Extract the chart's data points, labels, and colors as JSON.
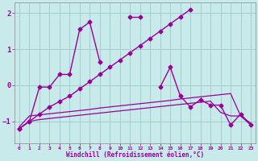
{
  "title": "",
  "xlabel": "Windchill (Refroidissement éolien,°C)",
  "ylabel": "",
  "bg_color": "#c8eaea",
  "grid_color": "#a0c8c8",
  "line_color": "#990099",
  "x": [
    0,
    1,
    2,
    3,
    4,
    5,
    6,
    7,
    8,
    9,
    10,
    11,
    12,
    13,
    14,
    15,
    16,
    17,
    18,
    19,
    20,
    21,
    22,
    23
  ],
  "series1_marker": [
    -1.2,
    -1.0,
    -0.05,
    -0.05,
    0.3,
    0.3,
    1.55,
    1.75,
    0.65,
    null,
    null,
    1.9,
    1.9,
    null,
    -0.05,
    0.5,
    -0.3,
    -0.6,
    -0.4,
    -0.55,
    -0.55,
    -1.1,
    -0.8,
    -1.1
  ],
  "series_diag": [
    -1.2,
    -1.0,
    -0.8,
    -0.6,
    -0.45,
    -0.3,
    -0.1,
    0.1,
    0.3,
    0.5,
    0.7,
    0.9,
    1.1,
    1.3,
    1.5,
    1.7,
    1.9,
    2.1,
    null,
    null,
    null,
    null,
    null,
    null
  ],
  "series_flat1": [
    -1.15,
    -0.85,
    -0.82,
    -0.79,
    -0.76,
    -0.73,
    -0.7,
    -0.67,
    -0.63,
    -0.6,
    -0.57,
    -0.54,
    -0.51,
    -0.48,
    -0.45,
    -0.42,
    -0.38,
    -0.35,
    -0.32,
    -0.29,
    -0.26,
    -0.23,
    -0.85,
    -1.05
  ],
  "series_flat2": [
    -1.2,
    -1.0,
    -0.95,
    -0.92,
    -0.89,
    -0.86,
    -0.83,
    -0.8,
    -0.77,
    -0.74,
    -0.71,
    -0.68,
    -0.65,
    -0.62,
    -0.59,
    -0.56,
    -0.53,
    -0.5,
    -0.47,
    -0.44,
    -0.75,
    -0.85,
    -0.85,
    -1.1
  ],
  "ylim": [
    -1.6,
    2.3
  ],
  "yticks": [
    -1,
    0,
    1,
    2
  ],
  "xticks": [
    0,
    1,
    2,
    3,
    4,
    5,
    6,
    7,
    8,
    9,
    10,
    11,
    12,
    13,
    14,
    15,
    16,
    17,
    18,
    19,
    20,
    21,
    22,
    23
  ]
}
